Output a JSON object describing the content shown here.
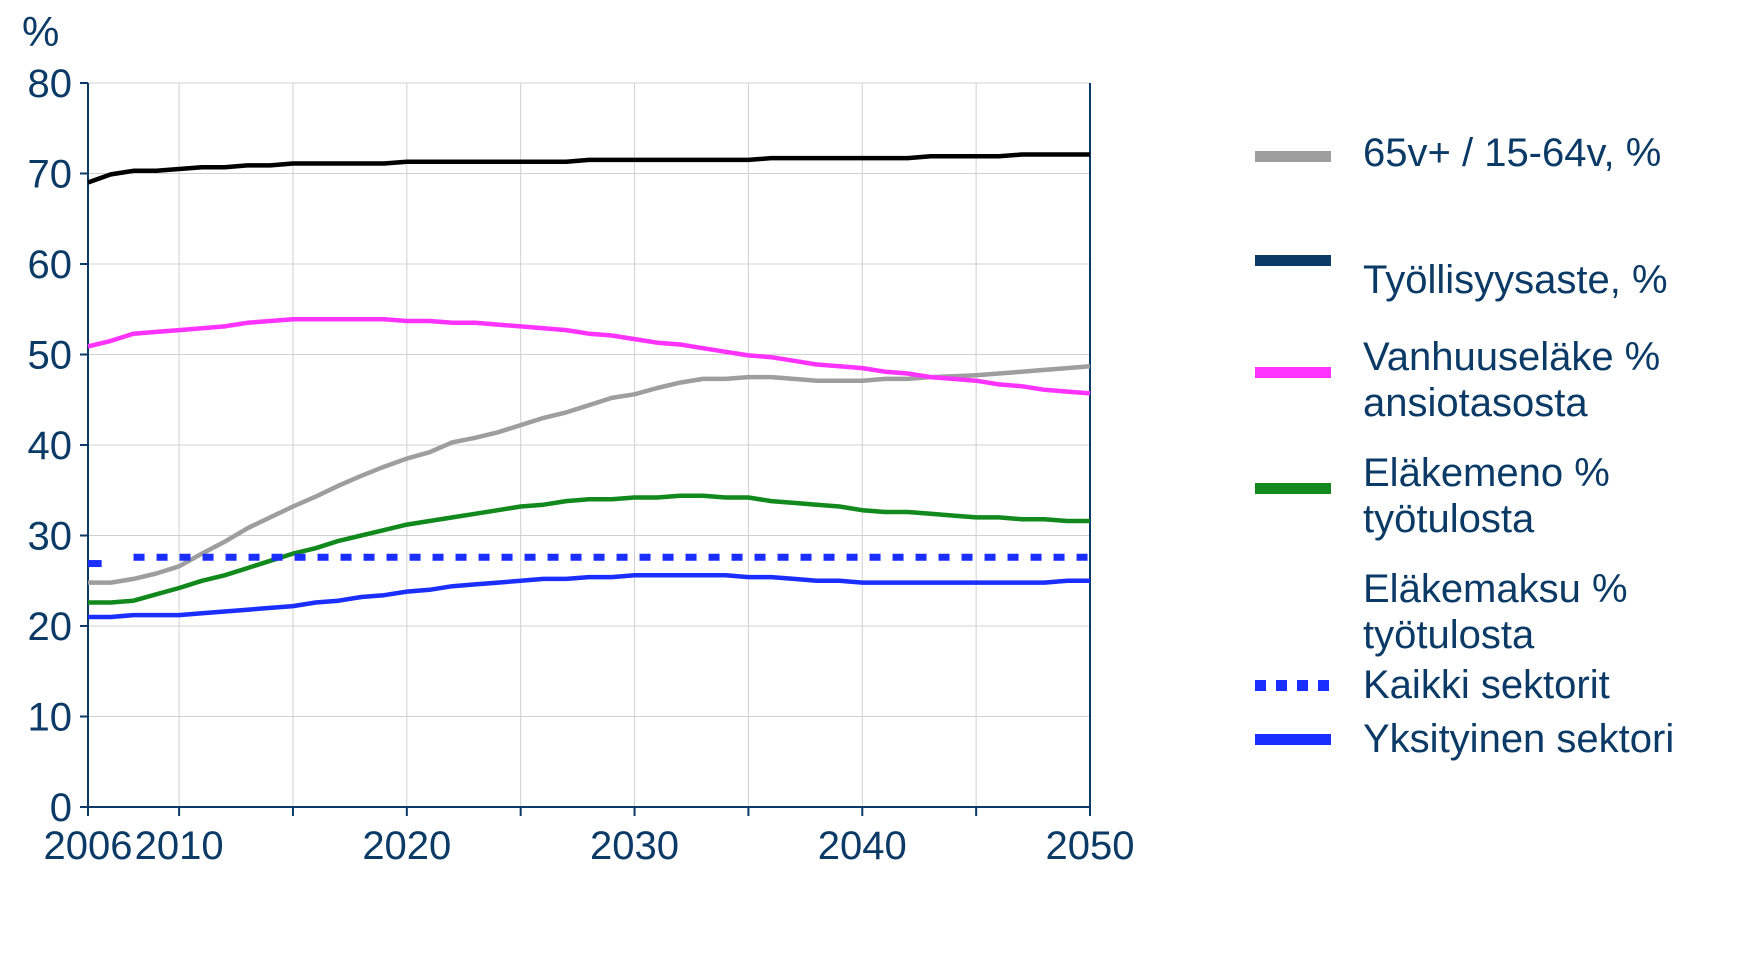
{
  "chart_data": {
    "type": "line",
    "title": "",
    "ylabel": "%",
    "xlabel": "",
    "ylim": [
      0,
      80
    ],
    "xlim": [
      2006,
      2050
    ],
    "y_ticks": [
      "0",
      "10",
      "20",
      "30",
      "40",
      "50",
      "60",
      "70",
      "80"
    ],
    "x_ticks": [
      "2006",
      "2010",
      "2020",
      "2030",
      "2040",
      "2050"
    ],
    "grid": true,
    "legend_position": "right",
    "legend_heading": "Eläkemaksu %\ntyötulosta",
    "series": [
      {
        "name": "65v+ / 15-64v, %",
        "color": "#9e9e9e",
        "style": "solid",
        "points": [
          [
            2006,
            24.8
          ],
          [
            2007,
            24.8
          ],
          [
            2008,
            25.2
          ],
          [
            2009,
            25.8
          ],
          [
            2010,
            26.6
          ],
          [
            2011,
            28.0
          ],
          [
            2012,
            29.3
          ],
          [
            2013,
            30.8
          ],
          [
            2014,
            32.0
          ],
          [
            2015,
            33.2
          ],
          [
            2016,
            34.3
          ],
          [
            2017,
            35.5
          ],
          [
            2018,
            36.6
          ],
          [
            2019,
            37.6
          ],
          [
            2020,
            38.5
          ],
          [
            2021,
            39.2
          ],
          [
            2022,
            40.3
          ],
          [
            2023,
            40.8
          ],
          [
            2024,
            41.4
          ],
          [
            2025,
            42.2
          ],
          [
            2026,
            43.0
          ],
          [
            2027,
            43.6
          ],
          [
            2028,
            44.4
          ],
          [
            2029,
            45.2
          ],
          [
            2030,
            45.6
          ],
          [
            2031,
            46.3
          ],
          [
            2032,
            46.9
          ],
          [
            2033,
            47.3
          ],
          [
            2034,
            47.3
          ],
          [
            2035,
            47.5
          ],
          [
            2036,
            47.5
          ],
          [
            2037,
            47.3
          ],
          [
            2038,
            47.1
          ],
          [
            2039,
            47.1
          ],
          [
            2040,
            47.1
          ],
          [
            2041,
            47.3
          ],
          [
            2042,
            47.3
          ],
          [
            2043,
            47.5
          ],
          [
            2044,
            47.6
          ],
          [
            2045,
            47.7
          ],
          [
            2046,
            47.9
          ],
          [
            2047,
            48.1
          ],
          [
            2048,
            48.3
          ],
          [
            2049,
            48.5
          ],
          [
            2050,
            48.7
          ]
        ]
      },
      {
        "name": "Työllisyysaste, %",
        "color": "#000000",
        "legend_color": "#0b3a66",
        "style": "solid",
        "points": [
          [
            2006,
            69.0
          ],
          [
            2007,
            69.9
          ],
          [
            2008,
            70.3
          ],
          [
            2009,
            70.3
          ],
          [
            2010,
            70.5
          ],
          [
            2011,
            70.7
          ],
          [
            2012,
            70.7
          ],
          [
            2013,
            70.9
          ],
          [
            2014,
            70.9
          ],
          [
            2015,
            71.1
          ],
          [
            2016,
            71.1
          ],
          [
            2017,
            71.1
          ],
          [
            2018,
            71.1
          ],
          [
            2019,
            71.1
          ],
          [
            2020,
            71.3
          ],
          [
            2021,
            71.3
          ],
          [
            2022,
            71.3
          ],
          [
            2023,
            71.3
          ],
          [
            2024,
            71.3
          ],
          [
            2025,
            71.3
          ],
          [
            2026,
            71.3
          ],
          [
            2027,
            71.3
          ],
          [
            2028,
            71.5
          ],
          [
            2029,
            71.5
          ],
          [
            2030,
            71.5
          ],
          [
            2031,
            71.5
          ],
          [
            2032,
            71.5
          ],
          [
            2033,
            71.5
          ],
          [
            2034,
            71.5
          ],
          [
            2035,
            71.5
          ],
          [
            2036,
            71.7
          ],
          [
            2037,
            71.7
          ],
          [
            2038,
            71.7
          ],
          [
            2039,
            71.7
          ],
          [
            2040,
            71.7
          ],
          [
            2041,
            71.7
          ],
          [
            2042,
            71.7
          ],
          [
            2043,
            71.9
          ],
          [
            2044,
            71.9
          ],
          [
            2045,
            71.9
          ],
          [
            2046,
            71.9
          ],
          [
            2047,
            72.1
          ],
          [
            2048,
            72.1
          ],
          [
            2049,
            72.1
          ],
          [
            2050,
            72.1
          ]
        ]
      },
      {
        "name": "Vanhuuseläke %\nansiotasosta",
        "color": "#ff33ff",
        "style": "solid",
        "points": [
          [
            2006,
            50.9
          ],
          [
            2007,
            51.5
          ],
          [
            2008,
            52.3
          ],
          [
            2009,
            52.5
          ],
          [
            2010,
            52.7
          ],
          [
            2011,
            52.9
          ],
          [
            2012,
            53.1
          ],
          [
            2013,
            53.5
          ],
          [
            2014,
            53.7
          ],
          [
            2015,
            53.9
          ],
          [
            2016,
            53.9
          ],
          [
            2017,
            53.9
          ],
          [
            2018,
            53.9
          ],
          [
            2019,
            53.9
          ],
          [
            2020,
            53.7
          ],
          [
            2021,
            53.7
          ],
          [
            2022,
            53.5
          ],
          [
            2023,
            53.5
          ],
          [
            2024,
            53.3
          ],
          [
            2025,
            53.1
          ],
          [
            2026,
            52.9
          ],
          [
            2027,
            52.7
          ],
          [
            2028,
            52.3
          ],
          [
            2029,
            52.1
          ],
          [
            2030,
            51.7
          ],
          [
            2031,
            51.3
          ],
          [
            2032,
            51.1
          ],
          [
            2033,
            50.7
          ],
          [
            2034,
            50.3
          ],
          [
            2035,
            49.9
          ],
          [
            2036,
            49.7
          ],
          [
            2037,
            49.3
          ],
          [
            2038,
            48.9
          ],
          [
            2039,
            48.7
          ],
          [
            2040,
            48.5
          ],
          [
            2041,
            48.1
          ],
          [
            2042,
            47.9
          ],
          [
            2043,
            47.5
          ],
          [
            2044,
            47.3
          ],
          [
            2045,
            47.1
          ],
          [
            2046,
            46.7
          ],
          [
            2047,
            46.5
          ],
          [
            2048,
            46.1
          ],
          [
            2049,
            45.9
          ],
          [
            2050,
            45.7
          ]
        ]
      },
      {
        "name": "Eläkemeno %\ntyötulosta",
        "color": "#11891c",
        "style": "solid",
        "points": [
          [
            2006,
            22.6
          ],
          [
            2007,
            22.6
          ],
          [
            2008,
            22.8
          ],
          [
            2009,
            23.5
          ],
          [
            2010,
            24.2
          ],
          [
            2011,
            25.0
          ],
          [
            2012,
            25.6
          ],
          [
            2013,
            26.4
          ],
          [
            2014,
            27.2
          ],
          [
            2015,
            28.0
          ],
          [
            2016,
            28.6
          ],
          [
            2017,
            29.4
          ],
          [
            2018,
            30.0
          ],
          [
            2019,
            30.6
          ],
          [
            2020,
            31.2
          ],
          [
            2021,
            31.6
          ],
          [
            2022,
            32.0
          ],
          [
            2023,
            32.4
          ],
          [
            2024,
            32.8
          ],
          [
            2025,
            33.2
          ],
          [
            2026,
            33.4
          ],
          [
            2027,
            33.8
          ],
          [
            2028,
            34.0
          ],
          [
            2029,
            34.0
          ],
          [
            2030,
            34.2
          ],
          [
            2031,
            34.2
          ],
          [
            2032,
            34.4
          ],
          [
            2033,
            34.4
          ],
          [
            2034,
            34.2
          ],
          [
            2035,
            34.2
          ],
          [
            2036,
            33.8
          ],
          [
            2037,
            33.6
          ],
          [
            2038,
            33.4
          ],
          [
            2039,
            33.2
          ],
          [
            2040,
            32.8
          ],
          [
            2041,
            32.6
          ],
          [
            2042,
            32.6
          ],
          [
            2043,
            32.4
          ],
          [
            2044,
            32.2
          ],
          [
            2045,
            32.0
          ],
          [
            2046,
            32.0
          ],
          [
            2047,
            31.8
          ],
          [
            2048,
            31.8
          ],
          [
            2049,
            31.6
          ],
          [
            2050,
            31.6
          ]
        ]
      },
      {
        "name": "Kaikki sektorit",
        "color": "#1a2fff",
        "style": "dotted",
        "points": [
          [
            2006,
            26.9
          ],
          [
            2006.6,
            26.9
          ],
          [
            2008,
            27.6
          ],
          [
            2050,
            27.6
          ]
        ]
      },
      {
        "name": "Yksityinen  sektori",
        "color": "#1a2fff",
        "style": "solid",
        "points": [
          [
            2006,
            21.0
          ],
          [
            2007,
            21.0
          ],
          [
            2008,
            21.2
          ],
          [
            2009,
            21.2
          ],
          [
            2010,
            21.2
          ],
          [
            2011,
            21.4
          ],
          [
            2012,
            21.6
          ],
          [
            2013,
            21.8
          ],
          [
            2014,
            22.0
          ],
          [
            2015,
            22.2
          ],
          [
            2016,
            22.6
          ],
          [
            2017,
            22.8
          ],
          [
            2018,
            23.2
          ],
          [
            2019,
            23.4
          ],
          [
            2020,
            23.8
          ],
          [
            2021,
            24.0
          ],
          [
            2022,
            24.4
          ],
          [
            2023,
            24.6
          ],
          [
            2024,
            24.8
          ],
          [
            2025,
            25.0
          ],
          [
            2026,
            25.2
          ],
          [
            2027,
            25.2
          ],
          [
            2028,
            25.4
          ],
          [
            2029,
            25.4
          ],
          [
            2030,
            25.6
          ],
          [
            2031,
            25.6
          ],
          [
            2032,
            25.6
          ],
          [
            2033,
            25.6
          ],
          [
            2034,
            25.6
          ],
          [
            2035,
            25.4
          ],
          [
            2036,
            25.4
          ],
          [
            2037,
            25.2
          ],
          [
            2038,
            25.0
          ],
          [
            2039,
            25.0
          ],
          [
            2040,
            24.8
          ],
          [
            2041,
            24.8
          ],
          [
            2042,
            24.8
          ],
          [
            2043,
            24.8
          ],
          [
            2044,
            24.8
          ],
          [
            2045,
            24.8
          ],
          [
            2046,
            24.8
          ],
          [
            2047,
            24.8
          ],
          [
            2048,
            24.8
          ],
          [
            2049,
            25.0
          ],
          [
            2050,
            25.0
          ]
        ]
      }
    ]
  }
}
